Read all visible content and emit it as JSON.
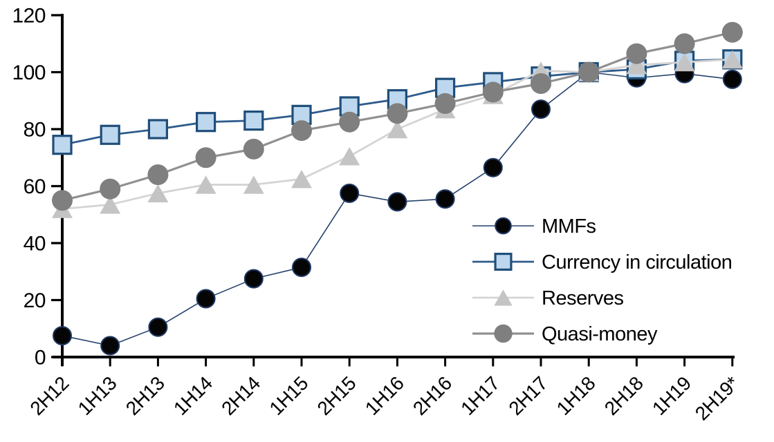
{
  "chart_data": {
    "type": "line",
    "title": "",
    "xlabel": "",
    "ylabel": "",
    "categories": [
      "2H12",
      "1H13",
      "2H13",
      "1H14",
      "2H14",
      "1H15",
      "2H15",
      "1H16",
      "2H16",
      "1H17",
      "2H17",
      "1H18",
      "2H18",
      "1H19",
      "2H19*"
    ],
    "y_axis": {
      "min": 0,
      "max": 120,
      "tick_step": 20,
      "ticks": [
        0,
        20,
        40,
        60,
        80,
        100,
        120
      ]
    },
    "grid": false,
    "legend_position": "inside-right-middle",
    "series": [
      {
        "id": "mmfs",
        "name": "MMFs",
        "values": [
          7.5,
          4,
          10.5,
          20.5,
          27.5,
          31.5,
          57.5,
          54.5,
          55.5,
          66.5,
          87,
          100,
          98,
          99.5,
          97.5
        ],
        "line_color": "#24416B",
        "line_width": 1.6,
        "marker": {
          "shape": "circle",
          "fill": "#050505",
          "stroke": "#1F3864",
          "stroke_width": 2,
          "size": 28
        }
      },
      {
        "id": "currency-in-circulation",
        "name": "Currency in circulation",
        "values": [
          74.5,
          78,
          80,
          82.5,
          83,
          85,
          88,
          90.5,
          94.5,
          96.5,
          98.5,
          100,
          101,
          104,
          104.5
        ],
        "line_color": "#2E5B8C",
        "line_width": 2.8,
        "marker": {
          "shape": "square",
          "fill": "#BDD7EE",
          "stroke": "#1F4E79",
          "stroke_width": 3.2,
          "size": 26
        }
      },
      {
        "id": "reserves",
        "name": "Reserves",
        "values": [
          52,
          53.5,
          57.5,
          60.5,
          60.5,
          62.5,
          70.5,
          80,
          87,
          92,
          100.5,
          100,
          102.5,
          103.5,
          104.5
        ],
        "line_color": "#D4D4D4",
        "line_width": 2.8,
        "marker": {
          "shape": "triangle",
          "fill": "#C4C4C4",
          "stroke": "none",
          "stroke_width": 0,
          "size": 30
        }
      },
      {
        "id": "quasi-money",
        "name": "Quasi-money",
        "values": [
          55,
          59,
          64,
          70,
          73,
          79.5,
          82.5,
          85.5,
          89,
          93,
          96,
          100,
          106.5,
          110,
          114
        ],
        "line_color": "#909090",
        "line_width": 3.2,
        "marker": {
          "shape": "circle",
          "fill": "#7F7F7F",
          "stroke": "none",
          "stroke_width": 0,
          "size": 30
        }
      }
    ],
    "axis_color": "#000000"
  }
}
